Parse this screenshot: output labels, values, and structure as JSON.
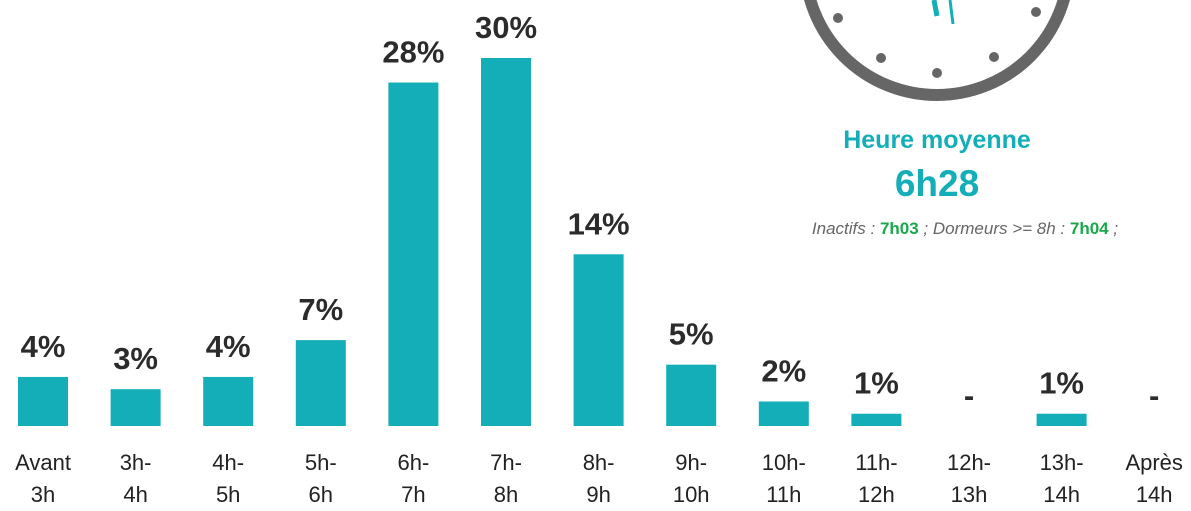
{
  "chart_data": {
    "type": "bar",
    "categories": [
      "Avant 3h",
      "3h-4h",
      "4h-5h",
      "5h-6h",
      "6h-7h",
      "7h-8h",
      "8h-9h",
      "9h-10h",
      "10h-11h",
      "11h-12h",
      "12h-13h",
      "13h-14h",
      "Après 14h"
    ],
    "values": [
      4,
      3,
      4,
      7,
      28,
      30,
      14,
      5,
      2,
      1,
      null,
      1,
      null
    ],
    "value_labels": [
      "4%",
      "3%",
      "4%",
      "7%",
      "28%",
      "30%",
      "14%",
      "5%",
      "2%",
      "1%",
      "-",
      "1%",
      "-"
    ],
    "color": "#14aeb8",
    "average": {
      "label": "Heure moyenne",
      "value": "6h28",
      "details": [
        {
          "label": "Inactifs :",
          "value": "7h03"
        },
        {
          "label": "; Dormeurs >= 8h :",
          "value": "7h04"
        }
      ],
      "end": ";"
    }
  }
}
